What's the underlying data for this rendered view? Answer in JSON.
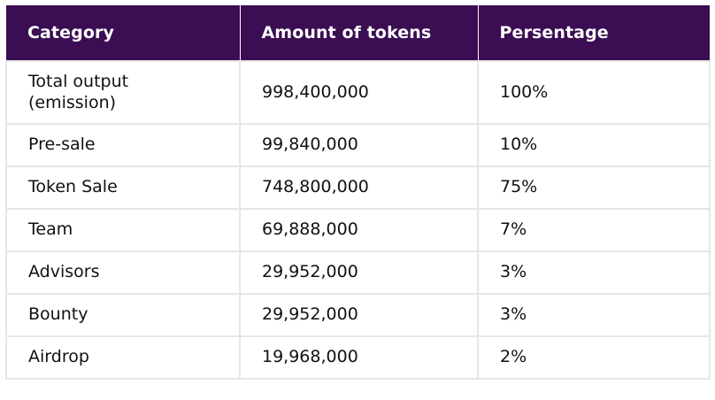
{
  "table": {
    "headers": [
      "Category",
      "Amount of tokens",
      "Persentage"
    ],
    "rows": [
      [
        "Total output (emission)",
        "998,400,000",
        "100%"
      ],
      [
        "Pre-sale",
        "99,840,000",
        "10%"
      ],
      [
        "Token Sale",
        "748,800,000",
        "75%"
      ],
      [
        "Team",
        "69,888,000",
        "7%"
      ],
      [
        "Advisors",
        "29,952,000",
        "3%"
      ],
      [
        "Bounty",
        "29,952,000",
        "3%"
      ],
      [
        "Airdrop",
        "19,968,000",
        "2%"
      ]
    ]
  },
  "colors": {
    "header_bg": "#3b0d52",
    "header_text": "#ffffff",
    "grid": "#e6e6e6"
  }
}
